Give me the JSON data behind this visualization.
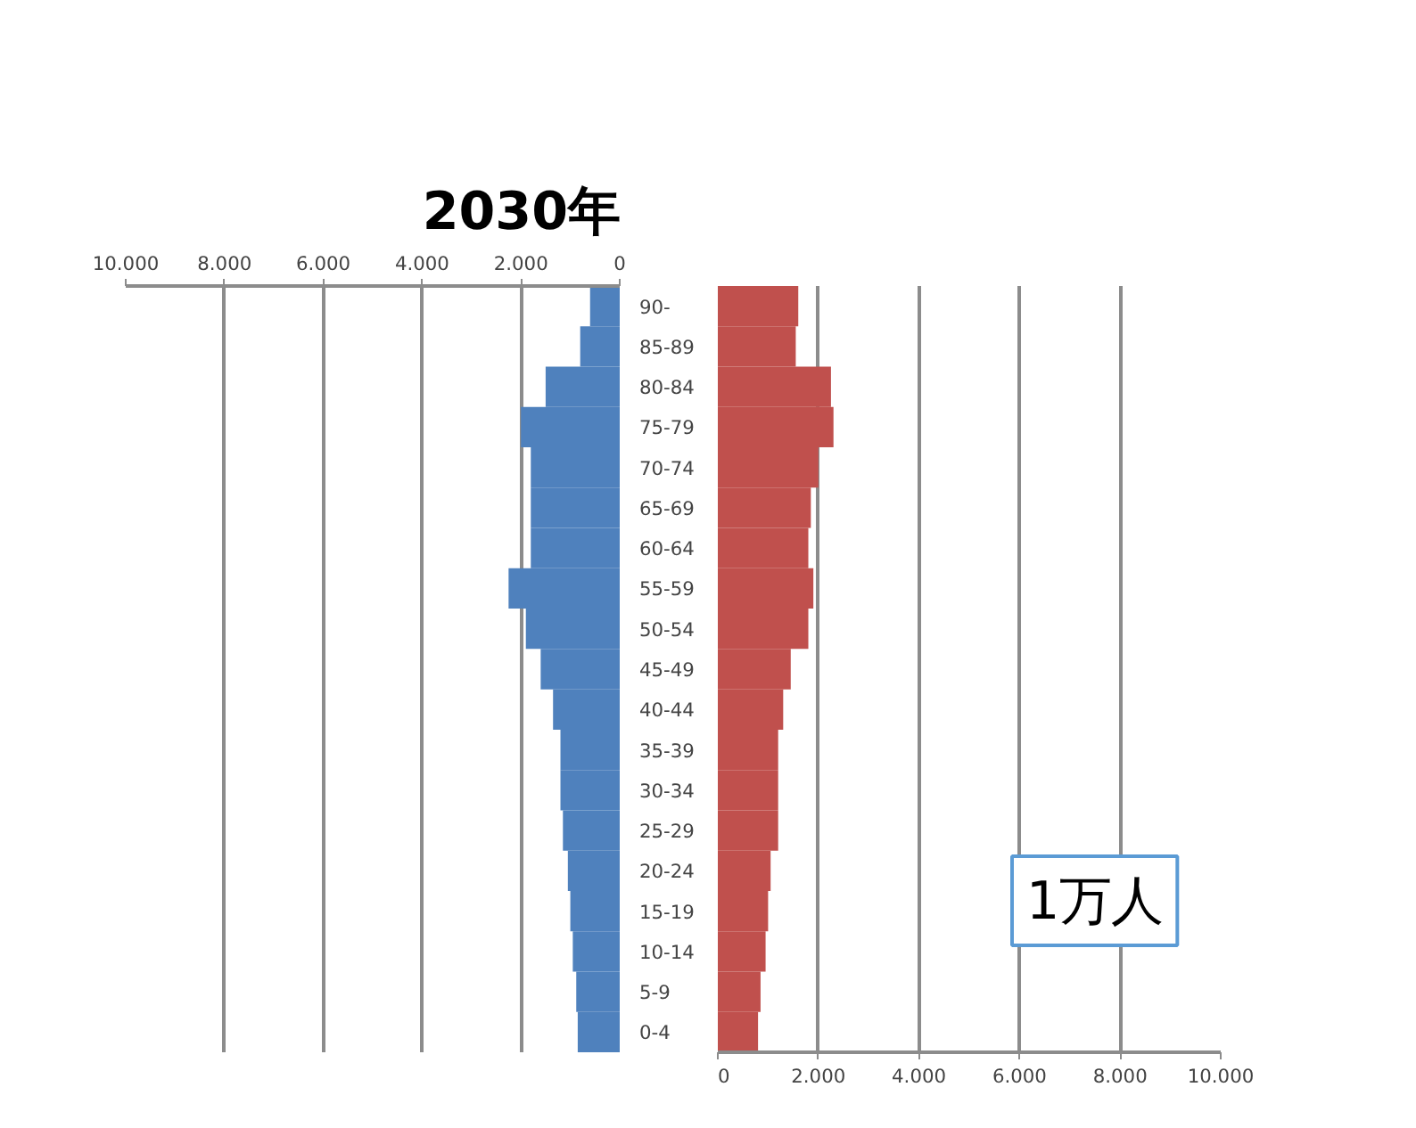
{
  "chart_data": [
    {
      "type": "bar",
      "orientation": "horizontal",
      "title": "2030年",
      "categories": [
        "90-",
        "85-89",
        "80-84",
        "75-79",
        "70-74",
        "65-69",
        "60-64",
        "55-59",
        "50-54",
        "45-49",
        "40-44",
        "35-39",
        "30-34",
        "25-29",
        "20-24",
        "15-19",
        "10-14",
        "5-9",
        "0-4"
      ],
      "series": [
        {
          "color": "#4f81bd",
          "values": [
            600,
            800,
            1500,
            2000,
            1800,
            1800,
            1800,
            2250,
            1900,
            1600,
            1350,
            1200,
            1200,
            1150,
            1050,
            1000,
            950,
            880,
            850
          ]
        }
      ],
      "xlim": [
        10000,
        0
      ],
      "xticks": [
        {
          "value": 10000,
          "label": "10.000"
        },
        {
          "value": 8000,
          "label": "8.000"
        },
        {
          "value": 6000,
          "label": "6.000"
        },
        {
          "value": 4000,
          "label": "4.000"
        },
        {
          "value": 2000,
          "label": "2.000"
        },
        0
      ],
      "grid": "x"
    },
    {
      "type": "bar",
      "orientation": "horizontal",
      "series": [
        {
          "color": "#c0504d",
          "values": [
            1600,
            1550,
            2250,
            2300,
            2000,
            1850,
            1800,
            1900,
            1800,
            1450,
            1300,
            1200,
            1200,
            1200,
            1050,
            1000,
            950,
            850,
            800
          ]
        }
      ],
      "xlim": [
        0,
        10000
      ],
      "xticks": [
        0,
        {
          "value": 2000,
          "label": "2.000"
        },
        {
          "value": 4000,
          "label": "4.000"
        },
        {
          "value": 6000,
          "label": "6.000"
        },
        {
          "value": 8000,
          "label": "8.000"
        },
        {
          "value": 10000,
          "label": "10.000"
        }
      ],
      "grid": "x",
      "tick_labels": "x",
      "annotations": [
        "1万人"
      ]
    }
  ]
}
